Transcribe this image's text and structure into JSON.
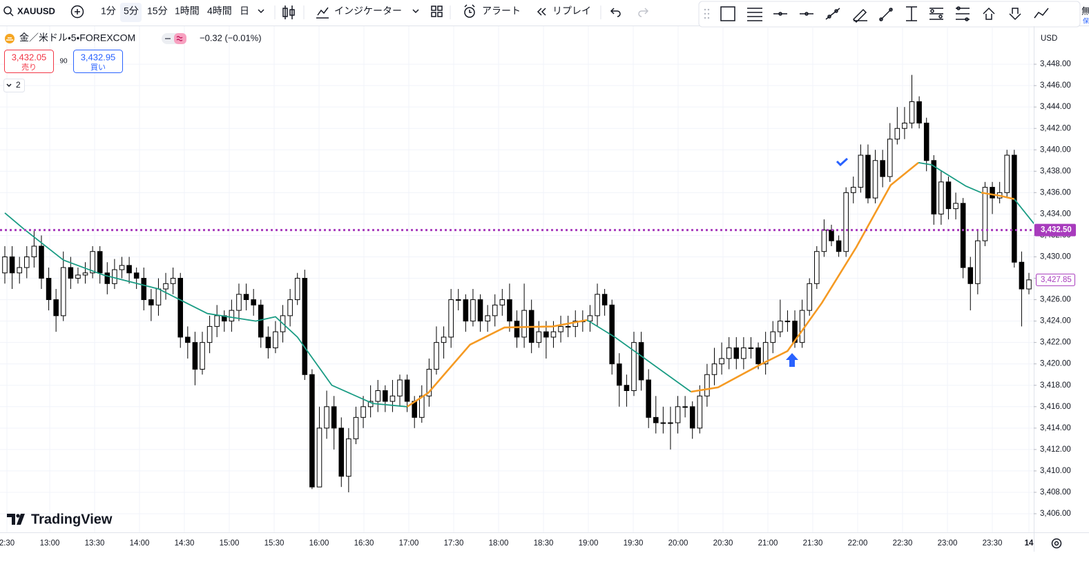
{
  "toolbar": {
    "symbol": "XAUUSD",
    "intervals": [
      "1分",
      "5分",
      "15分",
      "1時間",
      "4時間",
      "日"
    ],
    "indicators": "インジケーター",
    "alert": "アラート",
    "replay": "リプレイ"
  },
  "legend": {
    "title": "金／米ドル・5・FOREXCOM",
    "change": "−0.32 (−0.01%)",
    "sell_price": "3,432.05",
    "sell": "売り",
    "spread": "90",
    "buy_price": "3,432.95",
    "buy": "買い",
    "collapsed": "2"
  },
  "right_edge": [
    "無",
    "保"
  ],
  "logo": "TradingView",
  "chart_data": {
    "type": "candlestick",
    "currency": "USD",
    "x_labels": [
      "2:30",
      "13:00",
      "13:30",
      "14:00",
      "14:30",
      "15:00",
      "15:30",
      "16:00",
      "16:30",
      "17:00",
      "17:30",
      "18:00",
      "18:30",
      "19:00",
      "19:30",
      "20:00",
      "20:30",
      "21:00",
      "21:30",
      "22:00",
      "22:30",
      "23:00",
      "23:30",
      "14"
    ],
    "open": [
      3428.5,
      3430,
      3428.5,
      3429,
      3430,
      3431,
      3428,
      3426,
      3424.5,
      3429,
      3428,
      3428.3,
      3428.5,
      3430.5,
      3428.5,
      3427.5,
      3428.8,
      3429.2,
      3428.5,
      3428,
      3426,
      3425.5,
      3427,
      3427.5,
      3428,
      3422.5,
      3422,
      3419.5,
      3422,
      3423.5,
      3424.5,
      3424,
      3425,
      3426.5,
      3426,
      3425.5,
      3422.5,
      3421.5,
      3423,
      3424.5,
      3426,
      3428,
      3419,
      3408.5,
      3414,
      3416,
      3414,
      3409.5,
      3413,
      3415,
      3416,
      3416.5,
      3417.5,
      3416.5,
      3417,
      3418.5,
      3416.5,
      3415,
      3417,
      3419.5,
      3422,
      3422.5,
      3426,
      3426,
      3424,
      3426,
      3424,
      3424.5,
      3425.5,
      3426,
      3424,
      3422.5,
      3425,
      3422,
      3423,
      3422.5,
      3423,
      3423.5,
      3423.5,
      3424,
      3424,
      3424.5,
      3426.5,
      3425.5,
      3420,
      3418,
      3417.5,
      3422,
      3418.5,
      3415,
      3414.5,
      3414.5,
      3414.5,
      3416,
      3416,
      3414,
      3417,
      3419,
      3420,
      3420.5,
      3421.5,
      3420.5,
      3421.5,
      3421.5,
      3420,
      3422,
      3423,
      3424,
      3424,
      3422,
      3425,
      3427.5,
      3430.5,
      3432.5,
      3431.5,
      3430.5,
      3436,
      3436.5,
      3439.5,
      3435.5,
      3439,
      3437.5,
      3441,
      3442,
      3442.5,
      3444.5,
      3442.5,
      3439,
      3434,
      3437,
      3434.5,
      3435,
      3429,
      3427.5,
      3431.5,
      3436.5,
      3435.5,
      3436,
      3439.5,
      3429.5,
      3427
    ],
    "high": [
      3431,
      3431,
      3430,
      3431,
      3432.5,
      3432,
      3429,
      3427,
      3430.5,
      3430,
      3429,
      3429.5,
      3431,
      3431,
      3429.5,
      3429.8,
      3430,
      3430,
      3429,
      3429,
      3427,
      3428,
      3428.5,
      3429,
      3428.5,
      3423.5,
      3423,
      3423,
      3424.5,
      3425.5,
      3425,
      3426,
      3427.5,
      3427.5,
      3427,
      3426,
      3423.5,
      3424,
      3425.5,
      3427,
      3428.5,
      3428.8,
      3419.5,
      3416,
      3417.5,
      3417,
      3415,
      3414,
      3416,
      3417,
      3418,
      3418.5,
      3418,
      3418.5,
      3419,
      3419,
      3417,
      3418,
      3420.5,
      3423.5,
      3423.5,
      3427,
      3427,
      3426.5,
      3427,
      3426.5,
      3425.5,
      3426.5,
      3427,
      3427.5,
      3425,
      3427.5,
      3426,
      3424,
      3424,
      3424,
      3424.5,
      3424.5,
      3425,
      3425,
      3425.5,
      3427.5,
      3427,
      3426,
      3421,
      3419,
      3423,
      3423,
      3419.5,
      3417,
      3416,
      3416,
      3417,
      3417,
      3416.5,
      3418,
      3420,
      3421.5,
      3422,
      3422.5,
      3422.5,
      3422.5,
      3422.5,
      3422,
      3423,
      3424,
      3426,
      3425,
      3425,
      3426,
      3428,
      3431,
      3433.5,
      3433,
      3432,
      3436.5,
      3437.5,
      3440.5,
      3440.5,
      3440,
      3440,
      3442.5,
      3444,
      3444,
      3447,
      3445,
      3443,
      3439.5,
      3438,
      3437.5,
      3436,
      3435.5,
      3430,
      3432.5,
      3437,
      3437,
      3437,
      3440,
      3440,
      3430.5,
      3428.5
    ],
    "low": [
      3427.5,
      3427,
      3427.5,
      3428,
      3429,
      3427,
      3425,
      3423,
      3424,
      3427,
      3427.5,
      3427.5,
      3428,
      3427.5,
      3426.5,
      3427,
      3428,
      3427.5,
      3427,
      3425,
      3424,
      3424.5,
      3426,
      3426.5,
      3421.5,
      3420.5,
      3418,
      3419,
      3421,
      3422.5,
      3423,
      3423,
      3424,
      3425,
      3424.5,
      3421.5,
      3420.5,
      3421,
      3422,
      3423.5,
      3425.5,
      3418.5,
      3408.3,
      3408.5,
      3413,
      3412,
      3408.5,
      3408,
      3412.5,
      3414,
      3415,
      3415.5,
      3415.5,
      3415.5,
      3416,
      3415.5,
      3414,
      3414.5,
      3416,
      3419,
      3420.5,
      3421.5,
      3425,
      3423,
      3423.5,
      3423,
      3423,
      3423.5,
      3424.5,
      3423,
      3421.5,
      3421.5,
      3421,
      3421.5,
      3420.5,
      3421.5,
      3422,
      3422.5,
      3422.5,
      3423,
      3423,
      3423.5,
      3424.5,
      3419,
      3416,
      3416,
      3417,
      3417.5,
      3414,
      3413.5,
      3413.5,
      3412,
      3413.5,
      3415,
      3413,
      3413.5,
      3416,
      3418,
      3419,
      3419.5,
      3419.5,
      3419.5,
      3420.5,
      3419.5,
      3419,
      3421,
      3422.5,
      3423,
      3421.5,
      3421.5,
      3424.5,
      3427,
      3430,
      3431,
      3430,
      3430,
      3435,
      3436,
      3435,
      3435,
      3436.5,
      3437,
      3440.5,
      3441,
      3442,
      3442,
      3438,
      3433,
      3433,
      3433.5,
      3433.5,
      3428,
      3425,
      3426.5,
      3431,
      3434,
      3435,
      3435.5,
      3429,
      3423.5,
      3426.5
    ],
    "close": [
      3430,
      3428.5,
      3429,
      3430,
      3431,
      3428,
      3426,
      3424.5,
      3429,
      3428,
      3428.3,
      3428.5,
      3430.5,
      3428.5,
      3427.5,
      3428.8,
      3429.2,
      3428.5,
      3428,
      3426,
      3425.5,
      3427,
      3427.5,
      3428,
      3422.5,
      3422,
      3419.5,
      3422,
      3423.5,
      3424.5,
      3424,
      3425,
      3426.5,
      3426,
      3425.5,
      3422.5,
      3421.5,
      3423,
      3424.5,
      3426,
      3428,
      3419,
      3408.5,
      3414,
      3416,
      3414,
      3409.5,
      3413,
      3415,
      3416,
      3416.5,
      3417.5,
      3416.5,
      3417,
      3418.5,
      3416.5,
      3415,
      3417,
      3419.5,
      3422,
      3422.5,
      3426,
      3426,
      3424,
      3426,
      3424,
      3424.5,
      3425.5,
      3426,
      3424,
      3422.5,
      3425,
      3422,
      3423,
      3422.5,
      3423,
      3423.5,
      3423.5,
      3424,
      3424,
      3424.5,
      3426.5,
      3425.5,
      3420,
      3418,
      3417.5,
      3422,
      3418.5,
      3415,
      3414.5,
      3414.5,
      3414.5,
      3416,
      3416,
      3414,
      3417,
      3419,
      3420,
      3420.5,
      3421.5,
      3420.5,
      3421.5,
      3421.5,
      3420,
      3422,
      3423,
      3424,
      3424,
      3422,
      3425,
      3427.5,
      3430.5,
      3432.5,
      3431.5,
      3430.5,
      3436,
      3436.5,
      3439.5,
      3435.5,
      3439,
      3437.5,
      3441,
      3442,
      3442.5,
      3444.5,
      3442.5,
      3439,
      3434,
      3437,
      3434.5,
      3435,
      3429,
      3427.5,
      3431.5,
      3436.5,
      3435.5,
      3436,
      3439.5,
      3429.5,
      3427,
      3427.85
    ],
    "up_color": "#ffffff",
    "down_color": "#000000",
    "ylim": [
      3404.26,
      3451.55
    ],
    "yticks": [
      {
        "value": 3406,
        "label": "3,406.00"
      },
      {
        "value": 3408,
        "label": "3,408.00"
      },
      {
        "value": 3410,
        "label": "3,410.00"
      },
      {
        "value": 3412,
        "label": "3,412.00"
      },
      {
        "value": 3414,
        "label": "3,414.00"
      },
      {
        "value": 3416,
        "label": "3,416.00"
      },
      {
        "value": 3418,
        "label": "3,418.00"
      },
      {
        "value": 3420,
        "label": "3,420.00"
      },
      {
        "value": 3422,
        "label": "3,422.00"
      },
      {
        "value": 3424,
        "label": "3,424.00"
      },
      {
        "value": 3426,
        "label": "3,426.00"
      },
      {
        "value": 3428,
        "label": "3,428.00"
      },
      {
        "value": 3430,
        "label": "3,430.00"
      },
      {
        "value": 3432,
        "label": "3,432.00"
      },
      {
        "value": 3434,
        "label": "3,434.00"
      },
      {
        "value": 3436,
        "label": "3,436.00"
      },
      {
        "value": 3438,
        "label": "3,438.00"
      },
      {
        "value": 3440,
        "label": "3,440.00"
      },
      {
        "value": 3442,
        "label": "3,442.00"
      },
      {
        "value": 3444,
        "label": "3,444.00"
      },
      {
        "value": 3446,
        "label": "3,446.00"
      },
      {
        "value": 3448,
        "label": "3,448.00"
      }
    ],
    "grid": true,
    "lines": [
      {
        "color": "#1a9c84",
        "x": [
          0,
          2.6,
          8,
          13.5,
          21,
          27.7,
          34.3,
          37,
          40,
          44.7,
          50.3,
          55
        ],
        "values": [
          3434.1,
          3432.6,
          3429.7,
          3428.3,
          3427,
          3424.7,
          3424,
          3424.4,
          3422.5,
          3418,
          3416.3,
          3416
        ]
      },
      {
        "color": "#f59a23",
        "x": [
          55,
          57.9,
          63.6,
          68.3,
          74.9,
          79.6
        ],
        "values": [
          3416,
          3417.3,
          3421.8,
          3423.4,
          3423.5,
          3424.1
        ]
      },
      {
        "color": "#1a9c84",
        "x": [
          79.6,
          83.4,
          88.1,
          93.8
        ],
        "values": [
          3424.1,
          3422.5,
          3420.2,
          3417.4
        ]
      },
      {
        "color": "#f59a23",
        "x": [
          93.8,
          97.5,
          103.2,
          107,
          111.7,
          116.4,
          121.1,
          124.9
        ],
        "values": [
          3417.4,
          3417.8,
          3419.9,
          3421.2,
          3425.7,
          3430.9,
          3436.7,
          3438.8
        ]
      },
      {
        "color": "#1a9c84",
        "x": [
          124.9,
          126.7,
          131.4,
          133.5
        ],
        "values": [
          3438.8,
          3438.6,
          3436.6,
          3436
        ]
      },
      {
        "color": "#f59a23",
        "x": [
          133.5,
          136.1,
          138
        ],
        "values": [
          3436,
          3435.7,
          3435.4
        ]
      },
      {
        "color": "#1a9c84",
        "x": [
          138,
          140.7
        ],
        "values": [
          3435.4,
          3433.1
        ]
      }
    ],
    "price_line": {
      "value": 3432.5,
      "label": "3,432.50",
      "color": "#a83bbd"
    },
    "last_price": {
      "value": 3427.85,
      "label": "3,427.85"
    }
  }
}
